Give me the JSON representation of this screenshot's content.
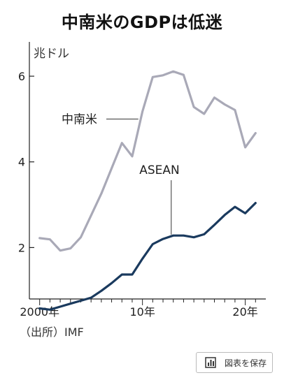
{
  "title": "中南米のGDPは低迷",
  "source": "（出所）IMF",
  "save_label": "図表を保存",
  "save_icon": "bar-chart-icon",
  "chart_data": {
    "type": "line",
    "unit_label": "兆ドル",
    "x": [
      2000,
      2001,
      2002,
      2003,
      2004,
      2005,
      2006,
      2007,
      2008,
      2009,
      2010,
      2011,
      2012,
      2013,
      2014,
      2015,
      2016,
      2017,
      2018,
      2019,
      2020,
      2021
    ],
    "x_tick_values": [
      2000,
      2010,
      2020
    ],
    "x_tick_labels": [
      "2000年",
      "10年",
      "20年"
    ],
    "xlim": [
      1999,
      2022
    ],
    "ylim": [
      0.8,
      6.8
    ],
    "y_tick_values": [
      2,
      4,
      6
    ],
    "y_tick_labels": [
      "2",
      "4",
      "6"
    ],
    "grid": false,
    "series": [
      {
        "name": "中南米",
        "color": "#a9a9b7",
        "values": [
          2.22,
          2.19,
          1.93,
          1.98,
          2.24,
          2.75,
          3.26,
          3.85,
          4.44,
          4.13,
          5.18,
          5.98,
          6.02,
          6.11,
          6.03,
          5.28,
          5.12,
          5.5,
          5.34,
          5.21,
          4.34,
          4.67
        ]
      },
      {
        "name": "ASEAN",
        "color": "#1a3a5e",
        "values": [
          0.58,
          0.55,
          0.62,
          0.69,
          0.76,
          0.83,
          0.99,
          1.17,
          1.37,
          1.37,
          1.74,
          2.08,
          2.2,
          2.28,
          2.28,
          2.24,
          2.31,
          2.53,
          2.76,
          2.95,
          2.8,
          3.04
        ]
      }
    ]
  }
}
